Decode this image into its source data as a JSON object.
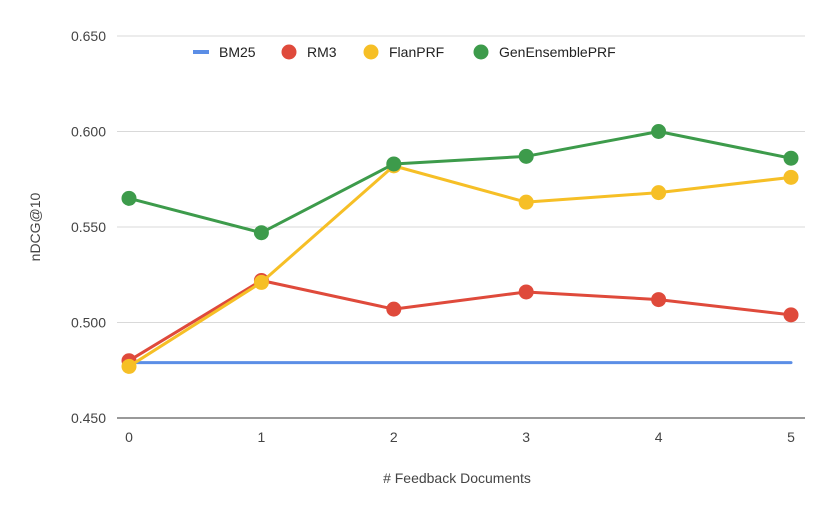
{
  "chart_data": {
    "type": "line",
    "title": "",
    "xlabel": "# Feedback Documents",
    "ylabel": "nDCG@10",
    "x": [
      0,
      1,
      2,
      3,
      4,
      5
    ],
    "x_tick_labels": [
      "0",
      "1",
      "2",
      "3",
      "4",
      "5"
    ],
    "ylim": [
      0.45,
      0.65
    ],
    "y_ticks": [
      0.45,
      0.5,
      0.55,
      0.6,
      0.65
    ],
    "y_tick_labels": [
      "0.450",
      "0.500",
      "0.550",
      "0.600",
      "0.650"
    ],
    "grid": true,
    "legend_position": "top",
    "series": [
      {
        "name": "BM25",
        "color": "#5b8ee6",
        "markers": false,
        "values": [
          0.479,
          0.479,
          0.479,
          0.479,
          0.479,
          0.479
        ]
      },
      {
        "name": "RM3",
        "color": "#df4a3b",
        "markers": true,
        "values": [
          0.48,
          0.522,
          0.507,
          0.516,
          0.512,
          0.504
        ]
      },
      {
        "name": "FlanPRF",
        "color": "#f6bf26",
        "markers": true,
        "values": [
          0.477,
          0.521,
          0.582,
          0.563,
          0.568,
          0.576
        ]
      },
      {
        "name": "GenEnsemblePRF",
        "color": "#3d9b4b",
        "markers": true,
        "values": [
          0.565,
          0.547,
          0.583,
          0.587,
          0.6,
          0.586
        ]
      }
    ]
  }
}
